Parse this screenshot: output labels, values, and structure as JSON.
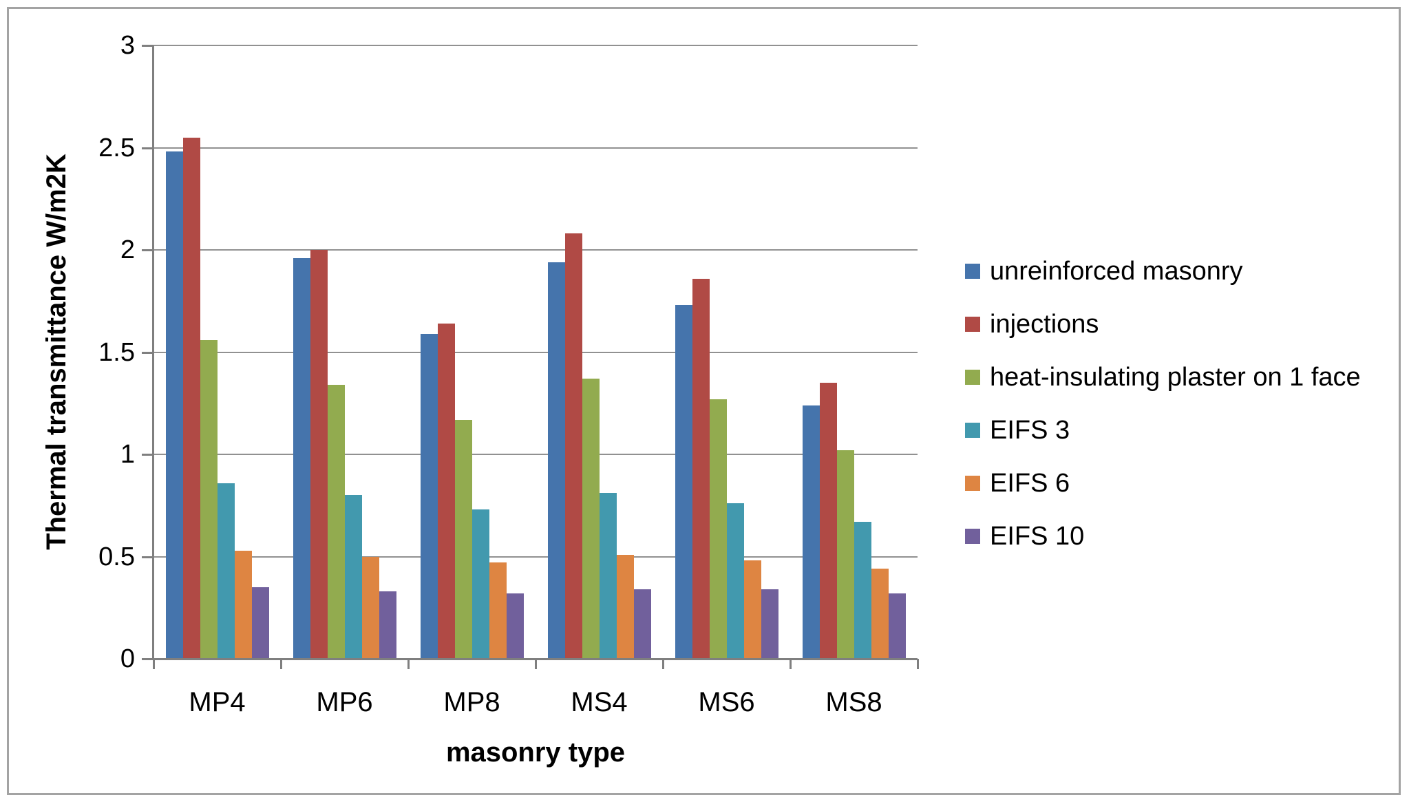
{
  "chart_data": {
    "type": "bar",
    "title": "",
    "xlabel": "masonry type",
    "ylabel": "Thermal transmittance W/m2K",
    "ylim": [
      0,
      3
    ],
    "ytick_step": 0.5,
    "ytick_labels": [
      "0",
      "0.5",
      "1",
      "1.5",
      "2",
      "2.5",
      "3"
    ],
    "grid": true,
    "legend_position": "right",
    "categories": [
      "MP4",
      "MP6",
      "MP8",
      "MS4",
      "MS6",
      "MS8"
    ],
    "series": [
      {
        "name": "unreinforced masonry",
        "color": "#4574AC",
        "values": [
          2.48,
          1.96,
          1.59,
          1.94,
          1.73,
          1.24
        ]
      },
      {
        "name": "injections",
        "color": "#B04A45",
        "values": [
          2.55,
          2.0,
          1.64,
          2.08,
          1.86,
          1.35
        ]
      },
      {
        "name": "heat-insulating plaster on 1 face",
        "color": "#92AB4F",
        "values": [
          1.56,
          1.34,
          1.17,
          1.37,
          1.27,
          1.02
        ]
      },
      {
        "name": "EIFS 3",
        "color": "#4299AE",
        "values": [
          0.86,
          0.8,
          0.73,
          0.81,
          0.76,
          0.67
        ]
      },
      {
        "name": "EIFS 6",
        "color": "#DE8542",
        "values": [
          0.53,
          0.5,
          0.47,
          0.51,
          0.48,
          0.44
        ]
      },
      {
        "name": "EIFS 10",
        "color": "#71609C",
        "values": [
          0.35,
          0.33,
          0.32,
          0.34,
          0.34,
          0.32
        ]
      }
    ]
  },
  "colors": {
    "gridline": "#919191",
    "axis": "#7f7f7f",
    "frame_border": "#a3a3a3",
    "text": "#000000",
    "background": "#ffffff"
  }
}
